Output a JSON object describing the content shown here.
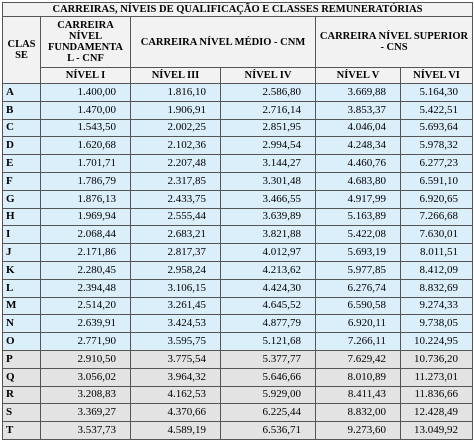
{
  "title": "CARREIRAS, NÍVEIS DE QUALIFICAÇÃO E CLASSES REMUNERATÓRIAS",
  "header": {
    "classe": "CLAS SE",
    "cnf": "CARREIRA NÍVEL FUNDAMENTA L - CNF",
    "cnm": "CARREIRA NÍVEL MÉDIO - CNM",
    "cns": "CARREIRA NÍVEL SUPERIOR - CNS"
  },
  "levels": [
    "NÍVEL I",
    "NÍVEL III",
    "NÍVEL IV",
    "NÍVEL V",
    "NÍVEL VI"
  ],
  "table": {
    "rows": [
      [
        "A",
        "1.400,00",
        "1.816,10",
        "2.586,80",
        "3.669,88",
        "5.164,30"
      ],
      [
        "B",
        "1.470,00",
        "1.906,91",
        "2.716,14",
        "3.853,37",
        "5.422,51"
      ],
      [
        "C",
        "1.543,50",
        "2.002,25",
        "2.851,95",
        "4.046,04",
        "5.693,64"
      ],
      [
        "D",
        "1.620,68",
        "2.102,36",
        "2.994,54",
        "4.248,34",
        "5.978,32"
      ],
      [
        "E",
        "1.701,71",
        "2.207,48",
        "3.144,27",
        "4.460,76",
        "6.277,23"
      ],
      [
        "F",
        "1.786,79",
        "2.317,85",
        "3.301,48",
        "4.683,80",
        "6.591,10"
      ],
      [
        "G",
        "1.876,13",
        "2.433,75",
        "3.466,55",
        "4.917,99",
        "6.920,65"
      ],
      [
        "H",
        "1.969,94",
        "2.555,44",
        "3.639,89",
        "5.163,89",
        "7.266,68"
      ],
      [
        "I",
        "2.068,44",
        "2.683,21",
        "3.821,88",
        "5.422,08",
        "7.630,01"
      ],
      [
        "J",
        "2.171,86",
        "2.817,37",
        "4.012,97",
        "5.693,19",
        "8.011,51"
      ],
      [
        "K",
        "2.280,45",
        "2.958,24",
        "4.213,62",
        "5.977,85",
        "8.412,09"
      ],
      [
        "L",
        "2.394,48",
        "3.106,15",
        "4.424,30",
        "6.276,74",
        "8.832,69"
      ],
      [
        "M",
        "2.514,20",
        "3.261,45",
        "4.645,52",
        "6.590,58",
        "9.274,33"
      ],
      [
        "N",
        "2.639,91",
        "3.424,53",
        "4.877,79",
        "6.920,11",
        "9.738,05"
      ],
      [
        "O",
        "2.771,90",
        "3.595,75",
        "5.121,68",
        "7.266,11",
        "10.224,95"
      ],
      [
        "P",
        "2.910,50",
        "3.775,54",
        "5.377,77",
        "7.629,42",
        "10.736,20"
      ],
      [
        "Q",
        "3.056,02",
        "3.964,32",
        "5.646,66",
        "8.010,89",
        "11.273,01"
      ],
      [
        "R",
        "3.208,83",
        "4.162,53",
        "5.929,00",
        "8.411,43",
        "11.836,66"
      ],
      [
        "S",
        "3.369,27",
        "4.370,66",
        "6.225,44",
        "8.832,00",
        "12.428,49"
      ],
      [
        "T",
        "3.537,73",
        "4.589,19",
        "6.536,71",
        "9.273,60",
        "13.049,92"
      ]
    ]
  }
}
